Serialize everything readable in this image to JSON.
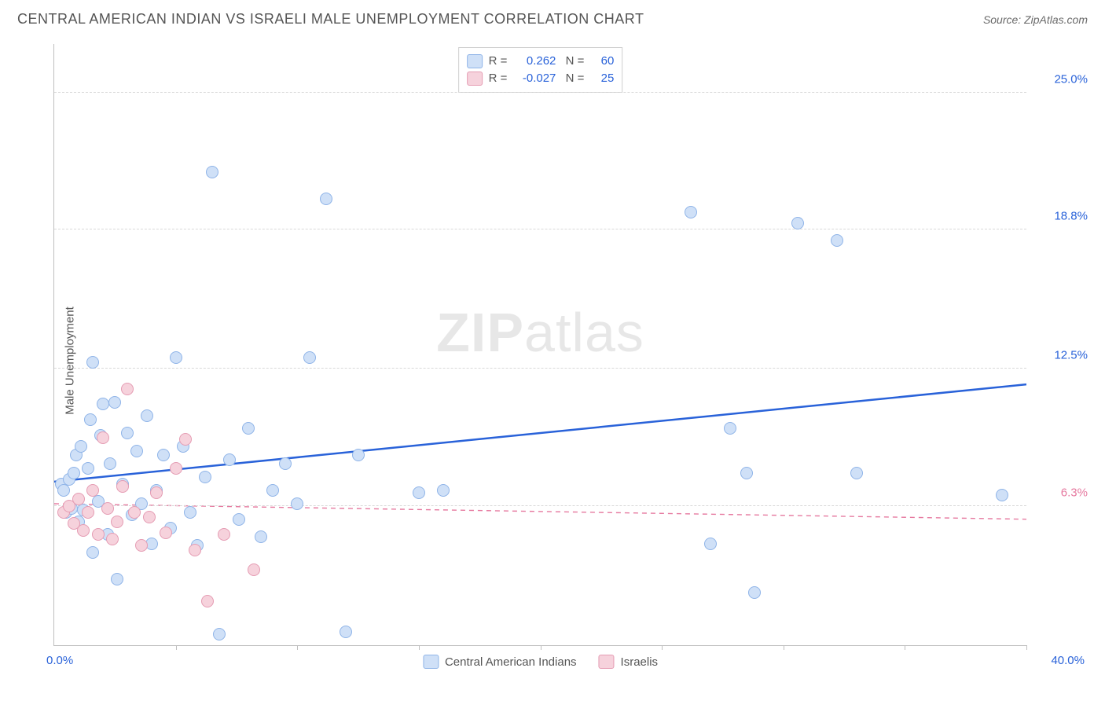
{
  "header": {
    "title": "CENTRAL AMERICAN INDIAN VS ISRAELI MALE UNEMPLOYMENT CORRELATION CHART",
    "source": "Source: ZipAtlas.com"
  },
  "chart": {
    "type": "scatter",
    "y_axis_label": "Male Unemployment",
    "x_min": 0,
    "x_max": 40,
    "y_min": 0,
    "y_max": 27.2,
    "x_origin_label": "0.0%",
    "x_max_label": "40.0%",
    "y_ticks": [
      {
        "value": 6.3,
        "label": "6.3%",
        "color": "#e67aa0"
      },
      {
        "value": 12.5,
        "label": "12.5%",
        "color": "#2962d9"
      },
      {
        "value": 18.8,
        "label": "18.8%",
        "color": "#2962d9"
      },
      {
        "value": 25.0,
        "label": "25.0%",
        "color": "#2962d9"
      }
    ],
    "x_ticks_pct": [
      12.5,
      25,
      37.5,
      50,
      62.5,
      75,
      87.5,
      100
    ],
    "background_color": "#ffffff",
    "grid_color": "#d8d8d8",
    "point_radius": 8,
    "point_border_width": 1.2,
    "watermark": "ZIPatlas",
    "series": [
      {
        "id": "cai",
        "name": "Central American Indians",
        "fill": "#cfe0f7",
        "stroke": "#8fb4e8",
        "R": "0.262",
        "N": "60",
        "trend": {
          "y_at_xmin": 7.4,
          "y_at_xmax": 11.8,
          "color": "#2962d9",
          "width": 2.5,
          "dash": false
        },
        "points": [
          [
            0.3,
            7.3
          ],
          [
            0.4,
            7.0
          ],
          [
            0.5,
            6.0
          ],
          [
            0.6,
            7.5
          ],
          [
            0.7,
            6.2
          ],
          [
            0.8,
            7.8
          ],
          [
            0.9,
            8.6
          ],
          [
            1.0,
            5.6
          ],
          [
            1.1,
            9.0
          ],
          [
            1.2,
            6.1
          ],
          [
            1.4,
            8.0
          ],
          [
            1.5,
            10.2
          ],
          [
            1.6,
            4.2
          ],
          [
            1.6,
            12.8
          ],
          [
            1.8,
            6.5
          ],
          [
            1.9,
            9.5
          ],
          [
            2.0,
            10.9
          ],
          [
            2.2,
            5.0
          ],
          [
            2.3,
            8.2
          ],
          [
            2.5,
            11.0
          ],
          [
            2.6,
            3.0
          ],
          [
            2.8,
            7.3
          ],
          [
            3.0,
            9.6
          ],
          [
            3.2,
            5.9
          ],
          [
            3.4,
            8.8
          ],
          [
            3.6,
            6.4
          ],
          [
            3.8,
            10.4
          ],
          [
            4.0,
            4.6
          ],
          [
            4.2,
            7.0
          ],
          [
            4.5,
            8.6
          ],
          [
            4.8,
            5.3
          ],
          [
            5.0,
            13.0
          ],
          [
            5.3,
            9.0
          ],
          [
            5.6,
            6.0
          ],
          [
            5.9,
            4.5
          ],
          [
            6.2,
            7.6
          ],
          [
            6.5,
            21.4
          ],
          [
            6.8,
            0.5
          ],
          [
            7.2,
            8.4
          ],
          [
            7.6,
            5.7
          ],
          [
            8.0,
            9.8
          ],
          [
            8.5,
            4.9
          ],
          [
            9.0,
            7.0
          ],
          [
            9.5,
            8.2
          ],
          [
            10.0,
            6.4
          ],
          [
            10.5,
            13.0
          ],
          [
            11.2,
            20.2
          ],
          [
            12.0,
            0.6
          ],
          [
            12.5,
            8.6
          ],
          [
            15.0,
            6.9
          ],
          [
            16.0,
            7.0
          ],
          [
            26.2,
            19.6
          ],
          [
            27.0,
            4.6
          ],
          [
            27.8,
            9.8
          ],
          [
            28.5,
            7.8
          ],
          [
            28.8,
            2.4
          ],
          [
            30.6,
            19.1
          ],
          [
            32.2,
            18.3
          ],
          [
            33.0,
            7.8
          ],
          [
            39.0,
            6.8
          ]
        ]
      },
      {
        "id": "isr",
        "name": "Israelis",
        "fill": "#f6d2dc",
        "stroke": "#e59cb3",
        "R": "-0.027",
        "N": "25",
        "trend": {
          "y_at_xmin": 6.4,
          "y_at_xmax": 5.7,
          "color": "#e67aa0",
          "width": 1.4,
          "dash": true
        },
        "points": [
          [
            0.4,
            6.0
          ],
          [
            0.6,
            6.3
          ],
          [
            0.8,
            5.5
          ],
          [
            1.0,
            6.6
          ],
          [
            1.2,
            5.2
          ],
          [
            1.4,
            6.0
          ],
          [
            1.6,
            7.0
          ],
          [
            1.8,
            5.0
          ],
          [
            2.0,
            9.4
          ],
          [
            2.2,
            6.2
          ],
          [
            2.4,
            4.8
          ],
          [
            2.6,
            5.6
          ],
          [
            2.8,
            7.2
          ],
          [
            3.0,
            11.6
          ],
          [
            3.3,
            6.0
          ],
          [
            3.6,
            4.5
          ],
          [
            3.9,
            5.8
          ],
          [
            4.2,
            6.9
          ],
          [
            4.6,
            5.1
          ],
          [
            5.0,
            8.0
          ],
          [
            5.4,
            9.3
          ],
          [
            5.8,
            4.3
          ],
          [
            6.3,
            2.0
          ],
          [
            7.0,
            5.0
          ],
          [
            8.2,
            3.4
          ]
        ]
      }
    ],
    "legend_series": [
      {
        "label": "Central American Indians",
        "fill": "#cfe0f7",
        "stroke": "#8fb4e8"
      },
      {
        "label": "Israelis",
        "fill": "#f6d2dc",
        "stroke": "#e59cb3"
      }
    ]
  }
}
